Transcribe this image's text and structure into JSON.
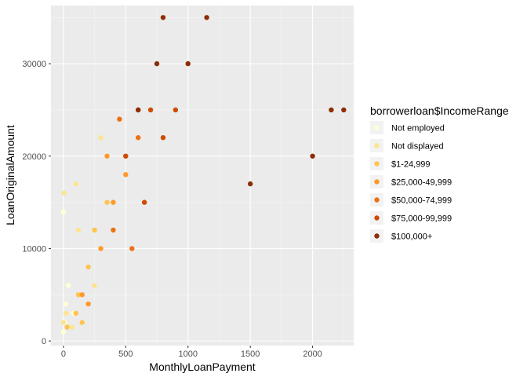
{
  "chart_data": {
    "type": "scatter",
    "xlabel": "MonthlyLoanPayment",
    "ylabel": "LoanOriginalAmount",
    "xlim": [
      -100,
      2330
    ],
    "ylim": [
      -500,
      36300
    ],
    "x_ticks": [
      0,
      500,
      1000,
      1500,
      2000
    ],
    "y_ticks": [
      0,
      10000,
      20000,
      30000
    ],
    "x_tick_labels": [
      "0",
      "500",
      "1000",
      "1500",
      "2000"
    ],
    "y_tick_labels": [
      "0",
      "10000",
      "20000",
      "30000"
    ],
    "grid": true,
    "legend_position": "right",
    "legend_title": "borrowerloan$IncomeRange",
    "categories": [
      {
        "name": "Not employed",
        "color": "#FFFFD4"
      },
      {
        "name": "Not displayed",
        "color": "#FEE391"
      },
      {
        "name": "$1-24,999",
        "color": "#FEC44F"
      },
      {
        "name": "$25,000-49,999",
        "color": "#FE9929"
      },
      {
        "name": "$50,000-74,999",
        "color": "#EC7014"
      },
      {
        "name": "$75,000-99,999",
        "color": "#CC4C02"
      },
      {
        "name": "$100,000+",
        "color": "#8C2D04"
      }
    ],
    "series": [
      {
        "name": "Not employed",
        "points": [
          [
            0,
            1000
          ],
          [
            10,
            2000
          ],
          [
            20,
            4000
          ],
          [
            0,
            14000
          ],
          [
            40,
            6000
          ],
          [
            80,
            3000
          ]
        ]
      },
      {
        "name": "Not displayed",
        "points": [
          [
            0,
            2000
          ],
          [
            5,
            16000
          ],
          [
            20,
            3000
          ],
          [
            70,
            1500
          ],
          [
            100,
            17000
          ],
          [
            120,
            12000
          ],
          [
            300,
            22000
          ],
          [
            250,
            6000
          ]
        ]
      },
      {
        "name": "$1-24,999",
        "points": [
          [
            30,
            1500
          ],
          [
            100,
            3000
          ],
          [
            150,
            2000
          ],
          [
            200,
            8000
          ],
          [
            250,
            12000
          ],
          [
            120,
            5000
          ],
          [
            350,
            15000
          ]
        ]
      },
      {
        "name": "$25,000-49,999",
        "points": [
          [
            200,
            4000
          ],
          [
            300,
            10000
          ],
          [
            400,
            15000
          ],
          [
            350,
            20000
          ],
          [
            500,
            18000
          ],
          [
            150,
            5000
          ]
        ]
      },
      {
        "name": "$50,000-74,999",
        "points": [
          [
            400,
            12000
          ],
          [
            500,
            20000
          ],
          [
            600,
            22000
          ],
          [
            450,
            24000
          ],
          [
            550,
            10000
          ]
        ]
      },
      {
        "name": "$75,000-99,999",
        "points": [
          [
            500,
            20000
          ],
          [
            600,
            25000
          ],
          [
            700,
            25000
          ],
          [
            800,
            22000
          ],
          [
            900,
            25000
          ],
          [
            650,
            15000
          ]
        ]
      },
      {
        "name": "$100,000+",
        "points": [
          [
            600,
            25000
          ],
          [
            750,
            30000
          ],
          [
            800,
            35000
          ],
          [
            1000,
            30000
          ],
          [
            1150,
            35000
          ],
          [
            1500,
            17000
          ],
          [
            2000,
            20000
          ],
          [
            2150,
            25000
          ],
          [
            2250,
            25000
          ]
        ]
      }
    ]
  }
}
